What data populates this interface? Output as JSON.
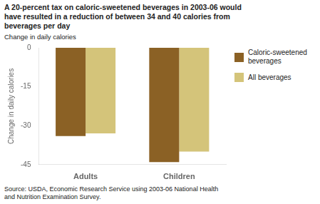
{
  "chart_data": {
    "type": "bar",
    "title": "A 20-percent tax on caloric-sweetened beverages in 2003-06 would\nhave resulted in a reduction of between 34 and 40 calories from\nbeverages per day",
    "subtitle": "Change in daily calories",
    "ylabel": "Change in daily calories",
    "categories": [
      "Adults",
      "Children"
    ],
    "series": [
      {
        "name": "Caloric-sweetened\nbeverages",
        "color": "#8B6125",
        "values": [
          -34,
          -44
        ]
      },
      {
        "name": "All beverages",
        "color": "#D4C47A",
        "values": [
          -33,
          -40
        ]
      }
    ],
    "ylim": [
      -45,
      0
    ],
    "yticks": [
      0,
      -15,
      -30,
      -45
    ],
    "grid": false,
    "legend": "right",
    "source": "Source: USDA, Economic Research Service using 2003-06 National Health\nand Nutrition Examination Survey."
  }
}
